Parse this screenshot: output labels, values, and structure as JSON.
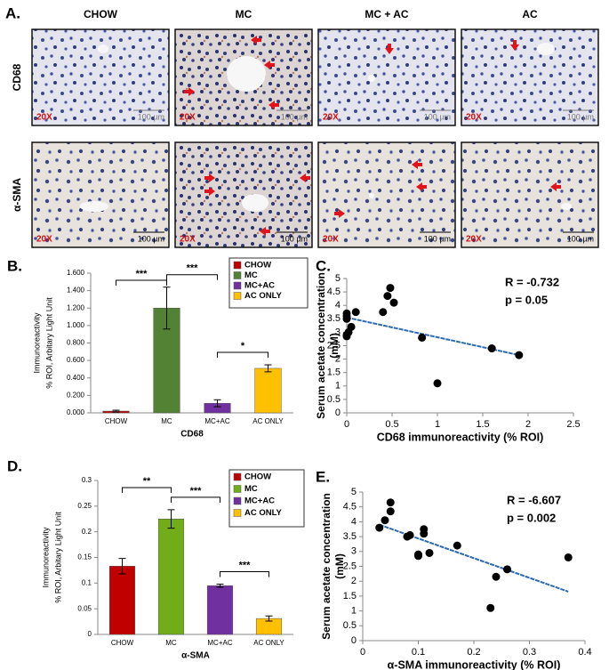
{
  "panel_a": {
    "label": "A.",
    "columns": [
      "CHOW",
      "MC",
      "MC + AC",
      "AC"
    ],
    "rows": [
      "CD68",
      "α-SMA"
    ],
    "magnification": "20X",
    "scale_bar": "100 µm"
  },
  "chart_data": [
    {
      "type": "bar",
      "panel": "B.",
      "categories": [
        "CHOW",
        "MC",
        "MC+AC",
        "AC ONLY"
      ],
      "values": [
        0.02,
        1.2,
        0.11,
        0.51
      ],
      "errors": [
        0.01,
        0.24,
        0.04,
        0.04
      ],
      "colors": [
        "#c00000",
        "#548235",
        "#7030a0",
        "#ffc000"
      ],
      "ylim": [
        0,
        1.6
      ],
      "yticks": [
        {
          "value": 0,
          "label": "0.000"
        },
        {
          "value": 0.2,
          "label": "0.200"
        },
        {
          "value": 0.4,
          "label": "0.400"
        },
        {
          "value": 0.6,
          "label": "0.600"
        },
        {
          "value": 0.8,
          "label": "0.800"
        },
        {
          "value": 1,
          "label": "1.000"
        },
        {
          "value": 1.2,
          "label": "1.200"
        },
        {
          "value": 1.4,
          "label": "1.400"
        },
        {
          "value": 1.6,
          "label": "1.600"
        }
      ],
      "ylabel": [
        "Immunoreactivity",
        "% ROI, Arbitary Light Unit"
      ],
      "xlabel": "CD68",
      "legend": "upper right",
      "annotations": [
        {
          "text": "***",
          "from": 0,
          "to": 1
        },
        {
          "text": "***",
          "from": 1,
          "to": 2
        },
        {
          "text": "*",
          "from": 2,
          "to": 3
        }
      ]
    },
    {
      "type": "scatter",
      "panel": "C.",
      "x": [
        0,
        0,
        0,
        0,
        0,
        0.02,
        0.05,
        0.1,
        0.4,
        0.45,
        0.48,
        0.52,
        0.83,
        1,
        1.6,
        1.9
      ],
      "y": [
        3.7,
        3.6,
        3.5,
        2.9,
        2.85,
        3.0,
        3.2,
        3.75,
        3.75,
        4.35,
        4.65,
        4.1,
        2.8,
        1.1,
        2.4,
        2.15
      ],
      "color": "#000000",
      "trendline": {
        "x": [
          0,
          1.9
        ],
        "y": [
          3.55,
          2.15
        ],
        "color": "#2e6bb5"
      },
      "xlim": [
        0,
        2.5
      ],
      "xticks": [
        0,
        0.5,
        1,
        1.5,
        2,
        2.5
      ],
      "ylim": [
        0,
        5
      ],
      "yticks": [
        0,
        0.5,
        1,
        1.5,
        2,
        2.5,
        3,
        3.5,
        4,
        4.5,
        5
      ],
      "ylabel": [
        "Serum acetate concentration",
        "(mM)"
      ],
      "xlabel": "CD68 immunoreactivity (% ROI)",
      "annotations": [
        "R = -0.732",
        "p = 0.05"
      ]
    },
    {
      "type": "bar",
      "panel": "D.",
      "categories": [
        "CHOW",
        "MC",
        "MC+AC",
        "AC ONLY"
      ],
      "values": [
        0.133,
        0.225,
        0.095,
        0.031
      ],
      "errors": [
        0.015,
        0.018,
        0.003,
        0.005
      ],
      "colors": [
        "#c00000",
        "#70ad18",
        "#7030a0",
        "#ffc000"
      ],
      "ylim": [
        0,
        0.3
      ],
      "yticks": [
        0,
        0.05,
        0.1,
        0.15,
        0.2,
        0.25,
        0.3
      ],
      "ylabel": [
        "Immunoreactivity",
        "% ROI, Arbitary Light Unit"
      ],
      "xlabel": "α-SMA",
      "legend": "upper right",
      "annotations": [
        {
          "text": "**",
          "from": 0,
          "to": 1
        },
        {
          "text": "***",
          "from": 1,
          "to": 2
        },
        {
          "text": "***",
          "from": 2,
          "to": 3
        }
      ]
    },
    {
      "type": "scatter",
      "panel": "E.",
      "x": [
        0.03,
        0.04,
        0.05,
        0.05,
        0.08,
        0.085,
        0.1,
        0.1,
        0.11,
        0.11,
        0.12,
        0.17,
        0.23,
        0.24,
        0.26,
        0.37
      ],
      "y": [
        3.8,
        4.05,
        4.35,
        4.65,
        3.5,
        3.55,
        2.85,
        2.9,
        3.75,
        3.6,
        2.95,
        3.2,
        1.1,
        2.15,
        2.4,
        2.8
      ],
      "color": "#000000",
      "trendline": {
        "x": [
          0.03,
          0.37
        ],
        "y": [
          3.9,
          1.65
        ],
        "color": "#2e6bb5"
      },
      "xlim": [
        0,
        0.4
      ],
      "xticks": [
        0,
        0.1,
        0.2,
        0.3,
        0.4
      ],
      "ylim": [
        0,
        5
      ],
      "yticks": [
        0,
        0.5,
        1,
        1.5,
        2,
        2.5,
        3,
        3.5,
        4,
        4.5,
        5
      ],
      "ylabel": [
        "Serum acetate concentration",
        "(mM)"
      ],
      "xlabel": "α-SMA immunoreactivity (% ROI)",
      "annotations": [
        "R = -6.607",
        "p = 0.002"
      ]
    }
  ]
}
